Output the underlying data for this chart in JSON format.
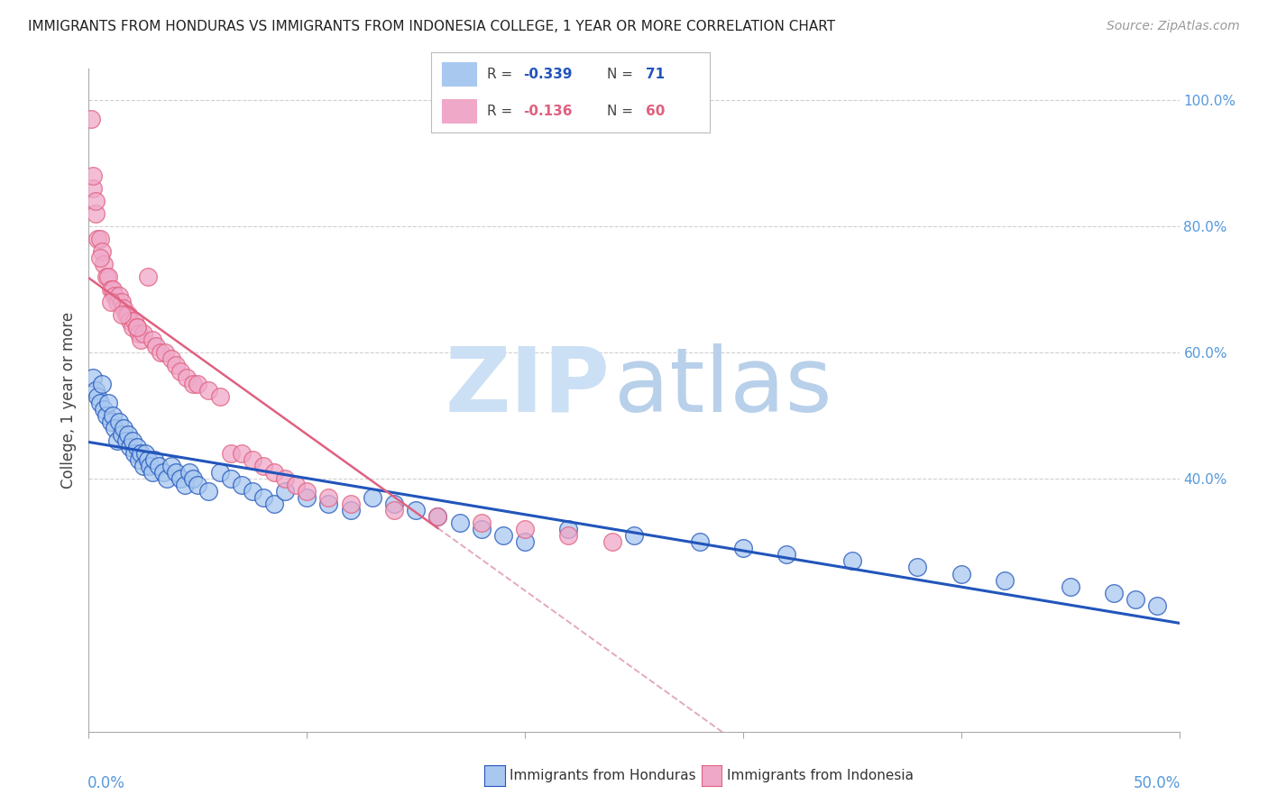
{
  "title": "IMMIGRANTS FROM HONDURAS VS IMMIGRANTS FROM INDONESIA COLLEGE, 1 YEAR OR MORE CORRELATION CHART",
  "source": "Source: ZipAtlas.com",
  "ylabel": "College, 1 year or more",
  "color_honduras": "#a8c8f0",
  "color_indonesia": "#f0a8c8",
  "color_honduras_line": "#2255bb",
  "color_indonesia_line": "#e06080",
  "color_trend_dashed": "#e0a0b8",
  "background": "#ffffff",
  "grid_color": "#d0d0d0",
  "watermark_zip_color": "#cce0f5",
  "watermark_atlas_color": "#b8d0ea",
  "xlim": [
    0.0,
    0.5
  ],
  "ylim": [
    0.0,
    1.05
  ],
  "right_tick_color": "#5599dd",
  "honduras_x": [
    0.002,
    0.003,
    0.004,
    0.005,
    0.006,
    0.007,
    0.008,
    0.009,
    0.01,
    0.011,
    0.012,
    0.013,
    0.014,
    0.015,
    0.016,
    0.017,
    0.018,
    0.019,
    0.02,
    0.021,
    0.022,
    0.023,
    0.024,
    0.025,
    0.026,
    0.027,
    0.028,
    0.029,
    0.03,
    0.032,
    0.034,
    0.036,
    0.038,
    0.04,
    0.042,
    0.044,
    0.046,
    0.048,
    0.05,
    0.055,
    0.06,
    0.065,
    0.07,
    0.075,
    0.08,
    0.085,
    0.09,
    0.1,
    0.11,
    0.12,
    0.13,
    0.14,
    0.15,
    0.16,
    0.17,
    0.18,
    0.19,
    0.2,
    0.22,
    0.25,
    0.28,
    0.3,
    0.32,
    0.35,
    0.38,
    0.4,
    0.42,
    0.45,
    0.47,
    0.48,
    0.49
  ],
  "honduras_y": [
    0.56,
    0.54,
    0.53,
    0.52,
    0.55,
    0.51,
    0.5,
    0.52,
    0.49,
    0.5,
    0.48,
    0.46,
    0.49,
    0.47,
    0.48,
    0.46,
    0.47,
    0.45,
    0.46,
    0.44,
    0.45,
    0.43,
    0.44,
    0.42,
    0.44,
    0.43,
    0.42,
    0.41,
    0.43,
    0.42,
    0.41,
    0.4,
    0.42,
    0.41,
    0.4,
    0.39,
    0.41,
    0.4,
    0.39,
    0.38,
    0.41,
    0.4,
    0.39,
    0.38,
    0.37,
    0.36,
    0.38,
    0.37,
    0.36,
    0.35,
    0.37,
    0.36,
    0.35,
    0.34,
    0.33,
    0.32,
    0.31,
    0.3,
    0.32,
    0.31,
    0.3,
    0.29,
    0.28,
    0.27,
    0.26,
    0.25,
    0.24,
    0.23,
    0.22,
    0.21,
    0.2
  ],
  "indonesia_x": [
    0.001,
    0.002,
    0.003,
    0.004,
    0.005,
    0.006,
    0.007,
    0.008,
    0.009,
    0.01,
    0.011,
    0.012,
    0.013,
    0.014,
    0.015,
    0.016,
    0.017,
    0.018,
    0.019,
    0.02,
    0.021,
    0.022,
    0.023,
    0.024,
    0.025,
    0.027,
    0.029,
    0.031,
    0.033,
    0.035,
    0.038,
    0.04,
    0.042,
    0.045,
    0.048,
    0.05,
    0.055,
    0.06,
    0.065,
    0.07,
    0.075,
    0.08,
    0.085,
    0.09,
    0.095,
    0.1,
    0.11,
    0.12,
    0.14,
    0.16,
    0.18,
    0.2,
    0.22,
    0.24,
    0.005,
    0.01,
    0.015,
    0.022,
    0.002,
    0.003
  ],
  "indonesia_y": [
    0.97,
    0.86,
    0.82,
    0.78,
    0.78,
    0.76,
    0.74,
    0.72,
    0.72,
    0.7,
    0.7,
    0.69,
    0.68,
    0.69,
    0.68,
    0.67,
    0.66,
    0.66,
    0.65,
    0.64,
    0.65,
    0.64,
    0.63,
    0.62,
    0.63,
    0.72,
    0.62,
    0.61,
    0.6,
    0.6,
    0.59,
    0.58,
    0.57,
    0.56,
    0.55,
    0.55,
    0.54,
    0.53,
    0.44,
    0.44,
    0.43,
    0.42,
    0.41,
    0.4,
    0.39,
    0.38,
    0.37,
    0.36,
    0.35,
    0.34,
    0.33,
    0.32,
    0.31,
    0.3,
    0.75,
    0.68,
    0.66,
    0.64,
    0.88,
    0.84
  ]
}
